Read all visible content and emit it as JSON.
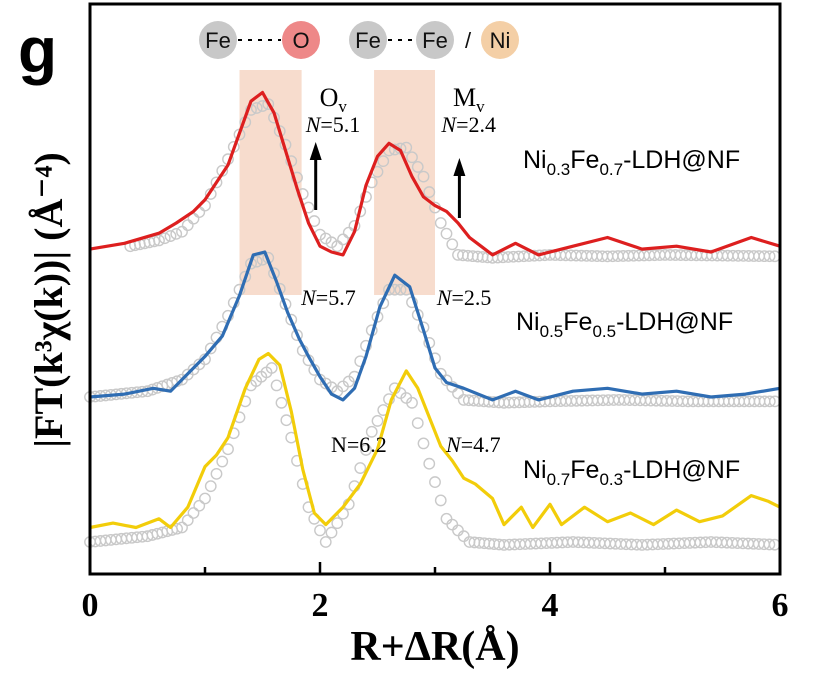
{
  "panel_label": "g",
  "legend": {
    "atoms": [
      "Fe",
      "O",
      "Fe",
      "Fe",
      "Ni"
    ],
    "separator": "/",
    "colors": {
      "fe": "#c8c8c8",
      "o": "#ee8888",
      "ni": "#f4cfa6"
    }
  },
  "shading": {
    "color": "#f6d6c4",
    "bands": [
      {
        "x": [
          1.3,
          1.84
        ],
        "label": "O",
        "subscript": "v"
      },
      {
        "x": [
          2.47,
          3.0
        ],
        "label": "M",
        "subscript": "v"
      }
    ]
  },
  "chart_data": {
    "type": "line",
    "xlabel": "R+ΔR(Å)",
    "ylabel": "|FT(k³χ(k))| (Å⁻⁴)",
    "xlim": [
      0,
      6
    ],
    "xticks": [
      "0",
      "2",
      "4",
      "6"
    ],
    "grid": false,
    "series": [
      {
        "name": "Ni0.3Fe0.7-LDH@NF",
        "color": "#dd1f1f",
        "offset": 2.0,
        "line": [
          [
            0,
            0.02
          ],
          [
            0.3,
            0.06
          ],
          [
            0.6,
            0.13
          ],
          [
            0.75,
            0.2
          ],
          [
            0.9,
            0.28
          ],
          [
            1.0,
            0.36
          ],
          [
            1.1,
            0.48
          ],
          [
            1.2,
            0.6
          ],
          [
            1.3,
            0.82
          ],
          [
            1.4,
            1.04
          ],
          [
            1.5,
            1.1
          ],
          [
            1.6,
            0.96
          ],
          [
            1.7,
            0.7
          ],
          [
            1.8,
            0.44
          ],
          [
            1.9,
            0.2
          ],
          [
            2.0,
            0.04
          ],
          [
            2.1,
            0.0
          ],
          [
            2.2,
            -0.02
          ],
          [
            2.3,
            0.14
          ],
          [
            2.4,
            0.46
          ],
          [
            2.5,
            0.66
          ],
          [
            2.6,
            0.75
          ],
          [
            2.7,
            0.7
          ],
          [
            2.8,
            0.52
          ],
          [
            2.9,
            0.38
          ],
          [
            3.0,
            0.32
          ],
          [
            3.1,
            0.28
          ],
          [
            3.2,
            0.2
          ],
          [
            3.3,
            0.1
          ],
          [
            3.4,
            0.04
          ],
          [
            3.5,
            -0.02
          ],
          [
            3.7,
            0.06
          ],
          [
            3.9,
            -0.02
          ],
          [
            4.2,
            0.04
          ],
          [
            4.5,
            0.1
          ],
          [
            4.8,
            0.02
          ],
          [
            5.1,
            0.04
          ],
          [
            5.4,
            0.0
          ],
          [
            5.75,
            0.1
          ],
          [
            6.0,
            0.04
          ]
        ],
        "fit": [
          [
            0.35,
            0.04
          ],
          [
            0.6,
            0.08
          ],
          [
            0.8,
            0.14
          ],
          [
            1.0,
            0.32
          ],
          [
            1.2,
            0.64
          ],
          [
            1.4,
            0.98
          ],
          [
            1.55,
            1.02
          ],
          [
            1.7,
            0.74
          ],
          [
            1.85,
            0.4
          ],
          [
            2.0,
            0.12
          ],
          [
            2.15,
            0.04
          ],
          [
            2.3,
            0.18
          ],
          [
            2.45,
            0.48
          ],
          [
            2.6,
            0.7
          ],
          [
            2.75,
            0.72
          ],
          [
            2.9,
            0.52
          ],
          [
            3.05,
            0.2
          ],
          [
            3.2,
            -0.02
          ],
          [
            3.5,
            -0.04
          ],
          [
            4.0,
            -0.02
          ],
          [
            4.5,
            -0.03
          ],
          [
            5.0,
            -0.02
          ],
          [
            6.0,
            -0.03
          ]
        ],
        "annotations": [
          {
            "x": 1.98,
            "text": "N=5.1",
            "italic_n": true,
            "arrow": true
          },
          {
            "x": 3.16,
            "text": "N=2.4",
            "italic_n": true,
            "arrow": true
          }
        ]
      },
      {
        "name": "Ni0.5Fe0.5-LDH@NF",
        "color": "#2f6db3",
        "offset": 1.0,
        "line": [
          [
            0,
            0.0
          ],
          [
            0.3,
            0.02
          ],
          [
            0.55,
            0.06
          ],
          [
            0.7,
            0.04
          ],
          [
            0.85,
            0.16
          ],
          [
            1.0,
            0.28
          ],
          [
            1.15,
            0.42
          ],
          [
            1.3,
            0.7
          ],
          [
            1.42,
            0.98
          ],
          [
            1.52,
            1.0
          ],
          [
            1.62,
            0.8
          ],
          [
            1.72,
            0.58
          ],
          [
            1.82,
            0.4
          ],
          [
            1.9,
            0.28
          ],
          [
            2.0,
            0.14
          ],
          [
            2.1,
            0.02
          ],
          [
            2.2,
            -0.02
          ],
          [
            2.3,
            0.06
          ],
          [
            2.4,
            0.28
          ],
          [
            2.52,
            0.62
          ],
          [
            2.65,
            0.84
          ],
          [
            2.78,
            0.76
          ],
          [
            2.9,
            0.46
          ],
          [
            3.0,
            0.2
          ],
          [
            3.1,
            0.1
          ],
          [
            3.25,
            0.06
          ],
          [
            3.5,
            -0.02
          ],
          [
            3.7,
            0.04
          ],
          [
            3.9,
            -0.02
          ],
          [
            4.2,
            0.04
          ],
          [
            4.5,
            0.06
          ],
          [
            4.8,
            0.02
          ],
          [
            5.1,
            0.04
          ],
          [
            5.4,
            0.0
          ],
          [
            5.7,
            0.02
          ],
          [
            6.0,
            0.06
          ]
        ],
        "fit": [
          [
            0,
            0.0
          ],
          [
            0.5,
            0.04
          ],
          [
            0.8,
            0.12
          ],
          [
            1.0,
            0.26
          ],
          [
            1.2,
            0.56
          ],
          [
            1.4,
            0.92
          ],
          [
            1.55,
            0.96
          ],
          [
            1.7,
            0.64
          ],
          [
            1.85,
            0.32
          ],
          [
            2.0,
            0.12
          ],
          [
            2.15,
            0.04
          ],
          [
            2.3,
            0.14
          ],
          [
            2.45,
            0.46
          ],
          [
            2.6,
            0.74
          ],
          [
            2.75,
            0.74
          ],
          [
            2.9,
            0.48
          ],
          [
            3.05,
            0.16
          ],
          [
            3.25,
            -0.02
          ],
          [
            3.6,
            -0.04
          ],
          [
            4.0,
            -0.03
          ],
          [
            4.6,
            -0.02
          ],
          [
            5.2,
            -0.03
          ],
          [
            6.0,
            -0.03
          ]
        ],
        "annotations": [
          {
            "x": 1.94,
            "text": "N=5.7",
            "italic_n": true,
            "arrow": false
          },
          {
            "x": 3.12,
            "text": "N=2.5",
            "italic_n": true,
            "arrow": false
          }
        ]
      },
      {
        "name": "Ni0.7Fe0.3-LDH@NF",
        "color": "#f2cd0a",
        "offset": 0.0,
        "line": [
          [
            0,
            0.1
          ],
          [
            0.2,
            0.13
          ],
          [
            0.4,
            0.1
          ],
          [
            0.6,
            0.16
          ],
          [
            0.7,
            0.1
          ],
          [
            0.85,
            0.24
          ],
          [
            1.0,
            0.52
          ],
          [
            1.1,
            0.6
          ],
          [
            1.2,
            0.72
          ],
          [
            1.35,
            1.06
          ],
          [
            1.47,
            1.26
          ],
          [
            1.55,
            1.3
          ],
          [
            1.65,
            1.22
          ],
          [
            1.75,
            0.9
          ],
          [
            1.85,
            0.5
          ],
          [
            1.95,
            0.2
          ],
          [
            2.05,
            0.12
          ],
          [
            2.2,
            0.24
          ],
          [
            2.35,
            0.4
          ],
          [
            2.5,
            0.64
          ],
          [
            2.62,
            0.98
          ],
          [
            2.75,
            1.18
          ],
          [
            2.85,
            1.06
          ],
          [
            2.95,
            0.86
          ],
          [
            3.05,
            0.66
          ],
          [
            3.15,
            0.56
          ],
          [
            3.25,
            0.44
          ],
          [
            3.35,
            0.4
          ],
          [
            3.5,
            0.3
          ],
          [
            3.6,
            0.12
          ],
          [
            3.75,
            0.24
          ],
          [
            3.85,
            0.1
          ],
          [
            4.0,
            0.26
          ],
          [
            4.1,
            0.12
          ],
          [
            4.3,
            0.24
          ],
          [
            4.5,
            0.14
          ],
          [
            4.7,
            0.2
          ],
          [
            4.9,
            0.12
          ],
          [
            5.1,
            0.22
          ],
          [
            5.3,
            0.14
          ],
          [
            5.5,
            0.18
          ],
          [
            5.75,
            0.32
          ],
          [
            5.9,
            0.28
          ],
          [
            6.0,
            0.24
          ]
        ],
        "fit": [
          [
            0,
            0.0
          ],
          [
            0.5,
            0.04
          ],
          [
            0.8,
            0.1
          ],
          [
            1.0,
            0.3
          ],
          [
            1.2,
            0.64
          ],
          [
            1.4,
            1.08
          ],
          [
            1.58,
            1.2
          ],
          [
            1.75,
            0.72
          ],
          [
            1.9,
            0.24
          ],
          [
            2.05,
            0.0
          ],
          [
            2.25,
            0.26
          ],
          [
            2.45,
            0.76
          ],
          [
            2.65,
            1.06
          ],
          [
            2.8,
            0.96
          ],
          [
            2.95,
            0.54
          ],
          [
            3.1,
            0.16
          ],
          [
            3.3,
            0.0
          ],
          [
            3.6,
            -0.02
          ],
          [
            4.2,
            0.0
          ],
          [
            4.8,
            -0.02
          ],
          [
            5.4,
            0.0
          ],
          [
            6.0,
            -0.02
          ]
        ],
        "annotations": [
          {
            "x": 2.2,
            "text": "N=6.2",
            "italic_n": false,
            "arrow": false
          },
          {
            "x": 3.2,
            "text": "N=4.7",
            "italic_n": true,
            "arrow": false
          }
        ]
      }
    ]
  }
}
